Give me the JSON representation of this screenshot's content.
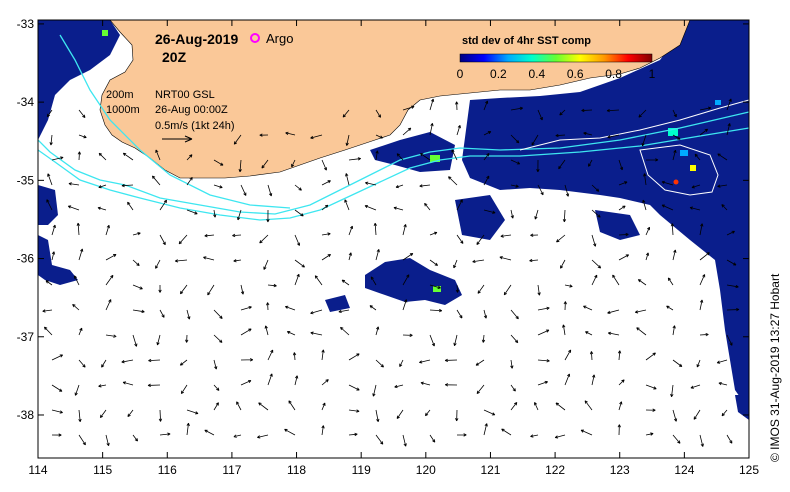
{
  "map": {
    "title_date": "26-Aug-2019",
    "title_time": "20Z",
    "argo_label": "Argo",
    "legend": {
      "title": "std dev of 4hr SST comp",
      "ticks": [
        "0",
        "0.2",
        "0.4",
        "0.6",
        "0.8",
        "1"
      ],
      "colors": [
        "#000080",
        "#0000ff",
        "#00aaff",
        "#00ffcc",
        "#66ff33",
        "#ffff00",
        "#ff9900",
        "#ff0000",
        "#800000"
      ]
    },
    "contours": {
      "shallow": "200m",
      "deep": "1000m"
    },
    "current_source": "NRT00 GSL",
    "current_time": "26-Aug 00:00Z",
    "scale_label": "0.5m/s (1kt 24h)",
    "x_ticks": [
      "114",
      "115",
      "116",
      "117",
      "118",
      "119",
      "120",
      "121",
      "122",
      "123",
      "124",
      "125"
    ],
    "y_ticks": [
      "-33",
      "-34",
      "-35",
      "-36",
      "-37",
      "-38"
    ],
    "lon_range": [
      114,
      125
    ],
    "lat_range": [
      -38.55,
      -32.95
    ],
    "credit": "© IMOS 31-Aug-2019 13:27 Hobart",
    "colors": {
      "land": "#fac898",
      "ocean": "#ffffff",
      "deep_sst": "#0a1e8c",
      "contour": "#3ee6f0",
      "argo": "#ff00ff"
    }
  }
}
